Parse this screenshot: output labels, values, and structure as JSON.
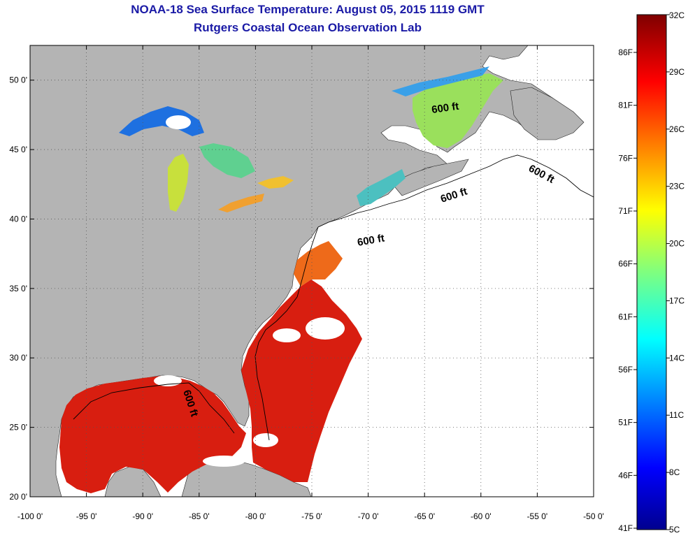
{
  "header": {
    "title": "NOAA-18 Sea Surface Temperature:  August 05, 2015 1119 GMT",
    "subtitle": "Rutgers Coastal Ocean Observation Lab"
  },
  "map": {
    "lon_range": [
      -100,
      -50
    ],
    "lat_range": [
      20,
      52.5
    ],
    "lon_ticks": [
      {
        "value": -100,
        "label": "-100 0'"
      },
      {
        "value": -95,
        "label": "-95 0'"
      },
      {
        "value": -90,
        "label": "-90 0'"
      },
      {
        "value": -85,
        "label": "-85 0'"
      },
      {
        "value": -80,
        "label": "-80 0'"
      },
      {
        "value": -75,
        "label": "-75 0'"
      },
      {
        "value": -70,
        "label": "-70 0'"
      },
      {
        "value": -65,
        "label": "-65 0'"
      },
      {
        "value": -60,
        "label": "-60 0'"
      },
      {
        "value": -55,
        "label": "-55 0'"
      },
      {
        "value": -50,
        "label": "-50 0'"
      }
    ],
    "lat_ticks": [
      {
        "value": 20,
        "label": "20 0'"
      },
      {
        "value": 25,
        "label": "25 0'"
      },
      {
        "value": 30,
        "label": "30 0'"
      },
      {
        "value": 35,
        "label": "35 0'"
      },
      {
        "value": 40,
        "label": "40 0'"
      },
      {
        "value": 45,
        "label": "45 0'"
      },
      {
        "value": 50,
        "label": "50 0'"
      }
    ],
    "contour_labels": [
      "600 ft",
      "600 ft",
      "600 ft",
      "600 ft",
      "600 ft"
    ],
    "colors": {
      "land": "#b4b4b4",
      "no_data": "#ffffff",
      "warm": "#d81e10"
    }
  },
  "colorbar": {
    "min_c": 5,
    "max_c": 32,
    "celsius_labels": [
      "32C",
      "29C",
      "26C",
      "23C",
      "20C",
      "17C",
      "14C",
      "11C",
      "8C",
      "5C"
    ],
    "fahrenheit_labels": [
      "86F",
      "81F",
      "76F",
      "71F",
      "66F",
      "61F",
      "56F",
      "51F",
      "46F",
      "41F"
    ]
  }
}
